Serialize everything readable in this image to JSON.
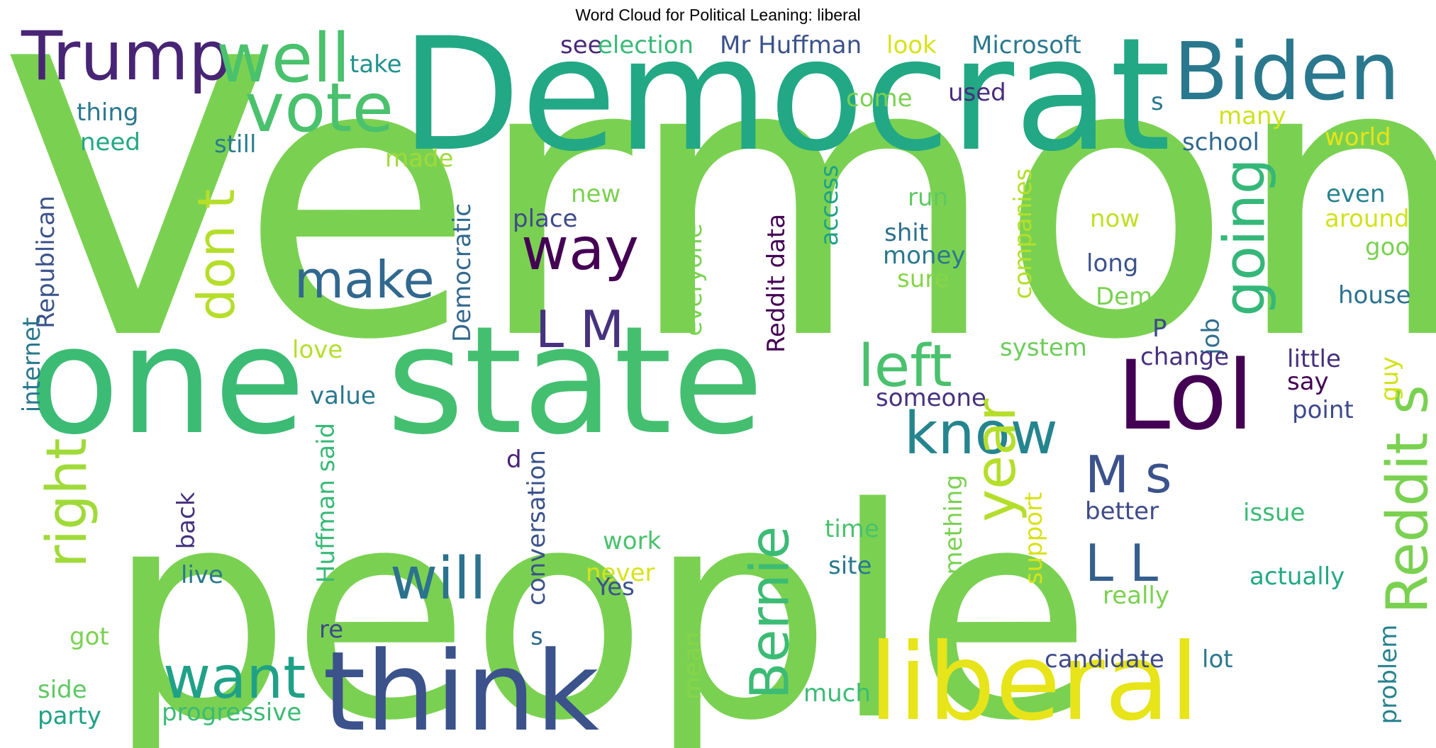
{
  "title": "Word Cloud for Political Leaning: liberal",
  "words": [
    {
      "text": "Vermont",
      "color": "#7ad151"
    },
    {
      "text": "people",
      "color": "#7ad151"
    },
    {
      "text": "Democrat",
      "color": "#22a884"
    },
    {
      "text": "one",
      "color": "#3cbb75"
    },
    {
      "text": "state",
      "color": "#44bf70"
    },
    {
      "text": "think",
      "color": "#3b528b"
    },
    {
      "text": "liberal",
      "color": "#e7e419"
    },
    {
      "text": "Biden",
      "color": "#2a788e"
    },
    {
      "text": "Lol",
      "color": "#440154"
    },
    {
      "text": "Trump",
      "color": "#482475"
    },
    {
      "text": "well",
      "color": "#4ac16d"
    },
    {
      "text": "vote",
      "color": "#4ac16d"
    },
    {
      "text": "way",
      "color": "#440154"
    },
    {
      "text": "make",
      "color": "#31688e"
    },
    {
      "text": "don t",
      "color": "#b5de2b"
    },
    {
      "text": "right",
      "color": "#a0da39"
    },
    {
      "text": "want",
      "color": "#1fa187"
    },
    {
      "text": "will",
      "color": "#2c728e"
    },
    {
      "text": "L M",
      "color": "#46327e"
    },
    {
      "text": "left",
      "color": "#4ac16d"
    },
    {
      "text": "know",
      "color": "#25858e"
    },
    {
      "text": "going",
      "color": "#35b779"
    },
    {
      "text": "Reddit s",
      "color": "#7ad151"
    },
    {
      "text": "year",
      "color": "#b5de2b"
    },
    {
      "text": "M s",
      "color": "#3b528b"
    },
    {
      "text": "L L",
      "color": "#355f8d"
    },
    {
      "text": "Bernie",
      "color": "#3cbb75"
    },
    {
      "text": "see",
      "color": "#482878"
    },
    {
      "text": "election",
      "color": "#38b977"
    },
    {
      "text": "Mr Huffman",
      "color": "#3b528b"
    },
    {
      "text": "look",
      "color": "#d8e219"
    },
    {
      "text": "Microsoft",
      "color": "#2a788e"
    },
    {
      "text": "take",
      "color": "#20928c"
    },
    {
      "text": "thing",
      "color": "#2a788e"
    },
    {
      "text": "need",
      "color": "#22a884"
    },
    {
      "text": "still",
      "color": "#287d8e"
    },
    {
      "text": "come",
      "color": "#7ad151"
    },
    {
      "text": "used",
      "color": "#472d7b"
    },
    {
      "text": "s",
      "color": "#2a788e"
    },
    {
      "text": "many",
      "color": "#d0e11c"
    },
    {
      "text": "world",
      "color": "#e7e419"
    },
    {
      "text": "school",
      "color": "#31688e"
    },
    {
      "text": "made",
      "color": "#a0da39"
    },
    {
      "text": "new",
      "color": "#7ad151"
    },
    {
      "text": "place",
      "color": "#3e4a89"
    },
    {
      "text": "run",
      "color": "#5ec962"
    },
    {
      "text": "now",
      "color": "#c2df23"
    },
    {
      "text": "even",
      "color": "#26828e"
    },
    {
      "text": "around",
      "color": "#d2e21b"
    },
    {
      "text": "good",
      "color": "#7ad151"
    },
    {
      "text": "shit",
      "color": "#2d708e"
    },
    {
      "text": "money",
      "color": "#2a788e"
    },
    {
      "text": "sure",
      "color": "#86d549"
    },
    {
      "text": "long",
      "color": "#3b528b"
    },
    {
      "text": "Dem",
      "color": "#7ad151"
    },
    {
      "text": "house",
      "color": "#2c728e"
    },
    {
      "text": "Republican",
      "color": "#3b528b"
    },
    {
      "text": "internet",
      "color": "#2a788e"
    },
    {
      "text": "Democratic",
      "color": "#31688e"
    },
    {
      "text": "Reddit data",
      "color": "#440154"
    },
    {
      "text": "everyone",
      "color": "#7ad151"
    },
    {
      "text": "access",
      "color": "#1fa187"
    },
    {
      "text": "companies",
      "color": "#b5de2b"
    },
    {
      "text": "job",
      "color": "#2e6e8e"
    },
    {
      "text": "P",
      "color": "#3e4a89"
    },
    {
      "text": "love",
      "color": "#b5de2b"
    },
    {
      "text": "system",
      "color": "#6ccd5a"
    },
    {
      "text": "change",
      "color": "#46307e"
    },
    {
      "text": "little",
      "color": "#46307e"
    },
    {
      "text": "guy",
      "color": "#d2e21b"
    },
    {
      "text": "say",
      "color": "#440154"
    },
    {
      "text": "point",
      "color": "#3e4a89"
    },
    {
      "text": "value",
      "color": "#2a788e"
    },
    {
      "text": "someone",
      "color": "#46327e"
    },
    {
      "text": "Huffman said",
      "color": "#38b977"
    },
    {
      "text": "d",
      "color": "#482173"
    },
    {
      "text": "conversation",
      "color": "#3b528b"
    },
    {
      "text": "s",
      "color": "#31688e"
    },
    {
      "text": "back",
      "color": "#46327e"
    },
    {
      "text": "live",
      "color": "#2a788e"
    },
    {
      "text": "re",
      "color": "#3e4a89"
    },
    {
      "text": "got",
      "color": "#7ad151"
    },
    {
      "text": "work",
      "color": "#4ac16d"
    },
    {
      "text": "never",
      "color": "#d8e219"
    },
    {
      "text": "Yes",
      "color": "#3b528b"
    },
    {
      "text": "time",
      "color": "#4ac16d"
    },
    {
      "text": "site",
      "color": "#2a788e"
    },
    {
      "text": "something",
      "color": "#7ad151"
    },
    {
      "text": "support",
      "color": "#d8e219"
    },
    {
      "text": "really",
      "color": "#7ad151"
    },
    {
      "text": "better",
      "color": "#3e4a89"
    },
    {
      "text": "issue",
      "color": "#3cbb75"
    },
    {
      "text": "actually",
      "color": "#22a884"
    },
    {
      "text": "problem",
      "color": "#26828e"
    },
    {
      "text": "side",
      "color": "#5ec962"
    },
    {
      "text": "party",
      "color": "#1fa187"
    },
    {
      "text": "progressive",
      "color": "#3cbb75"
    },
    {
      "text": "mean",
      "color": "#86d549"
    },
    {
      "text": "much",
      "color": "#3cbb75"
    },
    {
      "text": "candidate",
      "color": "#3e4a89"
    },
    {
      "text": "lot",
      "color": "#2a788e"
    }
  ]
}
